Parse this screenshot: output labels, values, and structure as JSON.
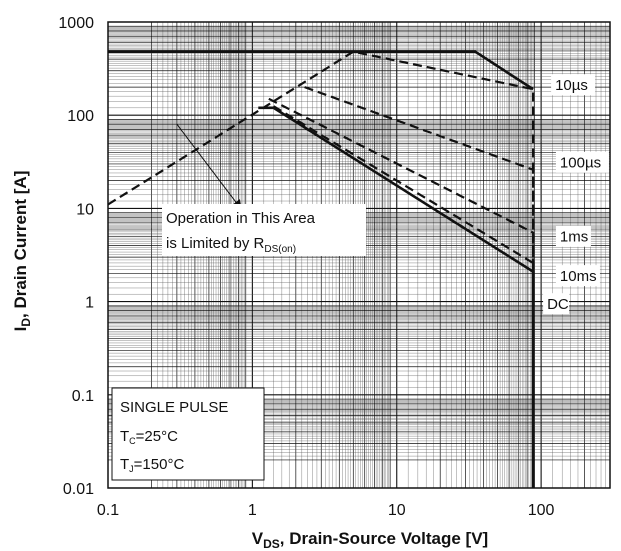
{
  "chart_data": {
    "type": "line",
    "title": "",
    "xlabel": {
      "main": "V",
      "sub": "DS",
      "rest": ", Drain-Source Voltage [V]"
    },
    "ylabel": {
      "main": "I",
      "sub": "D",
      "rest": ", Drain Current [A]"
    },
    "x_scale": "log",
    "y_scale": "log",
    "xlim": [
      0.1,
      300
    ],
    "ylim": [
      0.01,
      1000
    ],
    "x_ticks": [
      {
        "value": 0.1,
        "label": "0.1"
      },
      {
        "value": 1,
        "label": "1"
      },
      {
        "value": 10,
        "label": "10"
      },
      {
        "value": 100,
        "label": "100"
      }
    ],
    "y_ticks": [
      {
        "value": 1000,
        "label": "1000"
      },
      {
        "value": 100,
        "label": "100"
      },
      {
        "value": 10,
        "label": "10"
      },
      {
        "value": 1,
        "label": "1"
      },
      {
        "value": 0.1,
        "label": "0.1"
      },
      {
        "value": 0.01,
        "label": "0.01"
      }
    ],
    "grid": true,
    "series": [
      {
        "name": "10µs",
        "style": "dashed",
        "points": [
          [
            0.1,
            11
          ],
          [
            5,
            480
          ],
          [
            88,
            190
          ],
          [
            88,
            0.01
          ]
        ]
      },
      {
        "name": "100µs",
        "style": "dashed",
        "points": [
          [
            2.3,
            200
          ],
          [
            88,
            26
          ],
          [
            88,
            0.01
          ]
        ]
      },
      {
        "name": "1ms",
        "style": "dashed",
        "points": [
          [
            1.3,
            150
          ],
          [
            88,
            5.5
          ],
          [
            88,
            0.01
          ]
        ]
      },
      {
        "name": "10ms",
        "style": "dashed",
        "points": [
          [
            1.4,
            125
          ],
          [
            88,
            2.6
          ],
          [
            88,
            0.01
          ]
        ]
      },
      {
        "name": "DC",
        "style": "solid",
        "points": [
          [
            0.1,
            480
          ],
          [
            35,
            480
          ],
          [
            88,
            190
          ]
        ]
      },
      {
        "name": "DC",
        "style": "solid",
        "points": [
          [
            1.1,
            120
          ],
          [
            1.4,
            120
          ],
          [
            88,
            2.1
          ],
          [
            88,
            0.01
          ]
        ]
      }
    ],
    "series_labels": [
      {
        "text": "10µs",
        "x": 125,
        "y": 190
      },
      {
        "text": "100µs",
        "x": 135,
        "y": 28
      },
      {
        "text": "1ms",
        "x": 135,
        "y": 4.5
      },
      {
        "text": "10ms",
        "x": 135,
        "y": 1.7
      },
      {
        "text": "DC",
        "x": 110,
        "y": 0.85
      }
    ],
    "annotation": {
      "line1": "Operation in This Area",
      "line2_main": "is Limited by R",
      "line2_sub": "DS(on)",
      "arrow_from": [
        0.3,
        80
      ],
      "arrow_to": [
        0.83,
        10
      ]
    },
    "conditions": {
      "title": "SINGLE PULSE",
      "tc_main": "T",
      "tc_sub": "C",
      "tc_rest": "=25°C",
      "tj_main": "T",
      "tj_sub": "J",
      "tj_rest": "=150°C"
    }
  }
}
